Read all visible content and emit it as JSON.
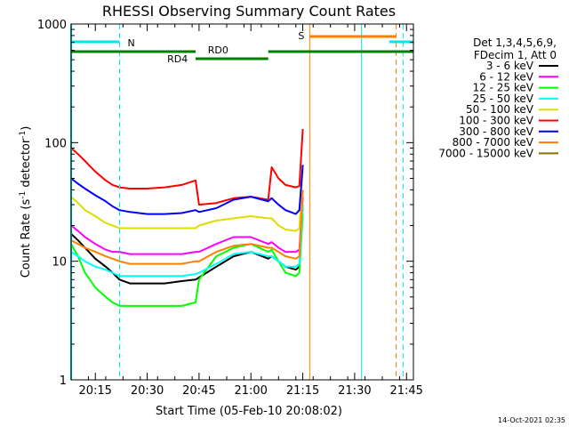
{
  "chart_data": {
    "type": "line",
    "title": "RHESSI Observing Summary Count Rates",
    "xlabel": "Start Time (05-Feb-10 20:08:02)",
    "ylabel": "Count Rate (s",
    "ylabel_sup": "-1",
    "ylabel_tail": " detector",
    "ylabel_sup2": "-1",
    "ylabel_close": ")",
    "ylim": [
      1,
      1000
    ],
    "y_scale": "log",
    "xlim": [
      "20:08",
      "21:47"
    ],
    "x_ticks": [
      "20:15",
      "20:30",
      "20:45",
      "21:00",
      "21:15",
      "21:30",
      "21:45"
    ],
    "y_ticks": [
      "1",
      "10",
      "100",
      "1000"
    ],
    "timestamp": "14-Oct-2021 02:35",
    "legend": {
      "header": [
        "Det 1,3,4,5,6,9,",
        "FDecim 1, Att 0"
      ],
      "placement": "right"
    },
    "annotations": {
      "night_label": "N",
      "saa_label": "S",
      "rd0_label": "RD0",
      "rd4_label": "RD4"
    },
    "time_points": [
      "20:08",
      "20:10",
      "20:12",
      "20:15",
      "20:18",
      "20:20",
      "20:22",
      "20:25",
      "20:30",
      "20:35",
      "20:40",
      "20:44",
      "20:45",
      "20:50",
      "20:55",
      "21:00",
      "21:05",
      "21:06",
      "21:08",
      "21:10",
      "21:13",
      "21:14",
      "21:15"
    ],
    "series": [
      {
        "name": "3 - 6 keV",
        "color": "#000000",
        "values": [
          17,
          15,
          13,
          10.5,
          9,
          8,
          7,
          6.5,
          6.5,
          6.5,
          6.8,
          7,
          7.3,
          9,
          11,
          12,
          10.5,
          11,
          10,
          9,
          8.5,
          9,
          30
        ]
      },
      {
        "name": "6 - 12 keV",
        "color": "#ff00ff",
        "values": [
          20,
          18,
          16,
          14,
          12.5,
          12,
          12,
          11.5,
          11.5,
          11.5,
          11.5,
          12,
          12,
          14,
          16,
          16,
          14,
          14.5,
          13,
          12,
          12,
          12.5,
          35
        ]
      },
      {
        "name": "12 - 25 keV",
        "color": "#00ff00",
        "values": [
          14,
          11,
          8,
          6,
          5,
          4.5,
          4.2,
          4.2,
          4.2,
          4.2,
          4.2,
          4.5,
          7,
          11,
          13,
          14,
          12,
          12.5,
          10,
          8,
          7.5,
          8,
          25
        ]
      },
      {
        "name": "25 - 50 keV",
        "color": "#00ffff",
        "values": [
          12,
          11,
          10,
          9,
          8.5,
          8,
          7.5,
          7.5,
          7.5,
          7.5,
          7.5,
          7.8,
          8,
          9.5,
          11.5,
          12,
          11,
          11,
          10,
          9,
          9,
          9.5,
          30
        ]
      },
      {
        "name": "50 - 100 keV",
        "color": "#dddd00",
        "values": [
          35,
          31,
          27,
          24,
          21,
          20,
          19,
          19,
          19,
          19,
          19,
          19,
          20,
          22,
          23,
          24,
          23,
          23,
          20,
          18.5,
          18,
          19,
          60
        ]
      },
      {
        "name": "100 - 300 keV",
        "color": "#ff0000",
        "values": [
          90,
          80,
          70,
          57,
          48,
          44,
          42,
          41,
          41,
          42,
          44,
          48,
          30,
          31,
          34,
          35,
          33,
          62,
          50,
          44,
          42,
          43,
          130
        ]
      },
      {
        "name": "300 - 800 keV",
        "color": "#0000ff",
        "values": [
          50,
          45,
          41,
          36,
          32,
          29,
          27,
          26,
          25,
          25,
          25.5,
          27,
          26,
          28,
          33,
          35,
          32,
          34,
          30,
          27,
          25,
          27,
          65
        ]
      },
      {
        "name": "800 - 7000 keV",
        "color": "#ff8000",
        "values": [
          15,
          14,
          13,
          12,
          11,
          10.5,
          10,
          9.5,
          9.5,
          9.5,
          9.5,
          10,
          10,
          12,
          13.5,
          14,
          13,
          13,
          12,
          11,
          10.5,
          11,
          40
        ]
      },
      {
        "name": "7000 - 15000 keV",
        "color": "#8b7000",
        "values": [
          null,
          null,
          null,
          null,
          null,
          null,
          null,
          null,
          null,
          null,
          null,
          null,
          null,
          null,
          null,
          null,
          null,
          null,
          null,
          null,
          null,
          null,
          null
        ]
      }
    ]
  }
}
